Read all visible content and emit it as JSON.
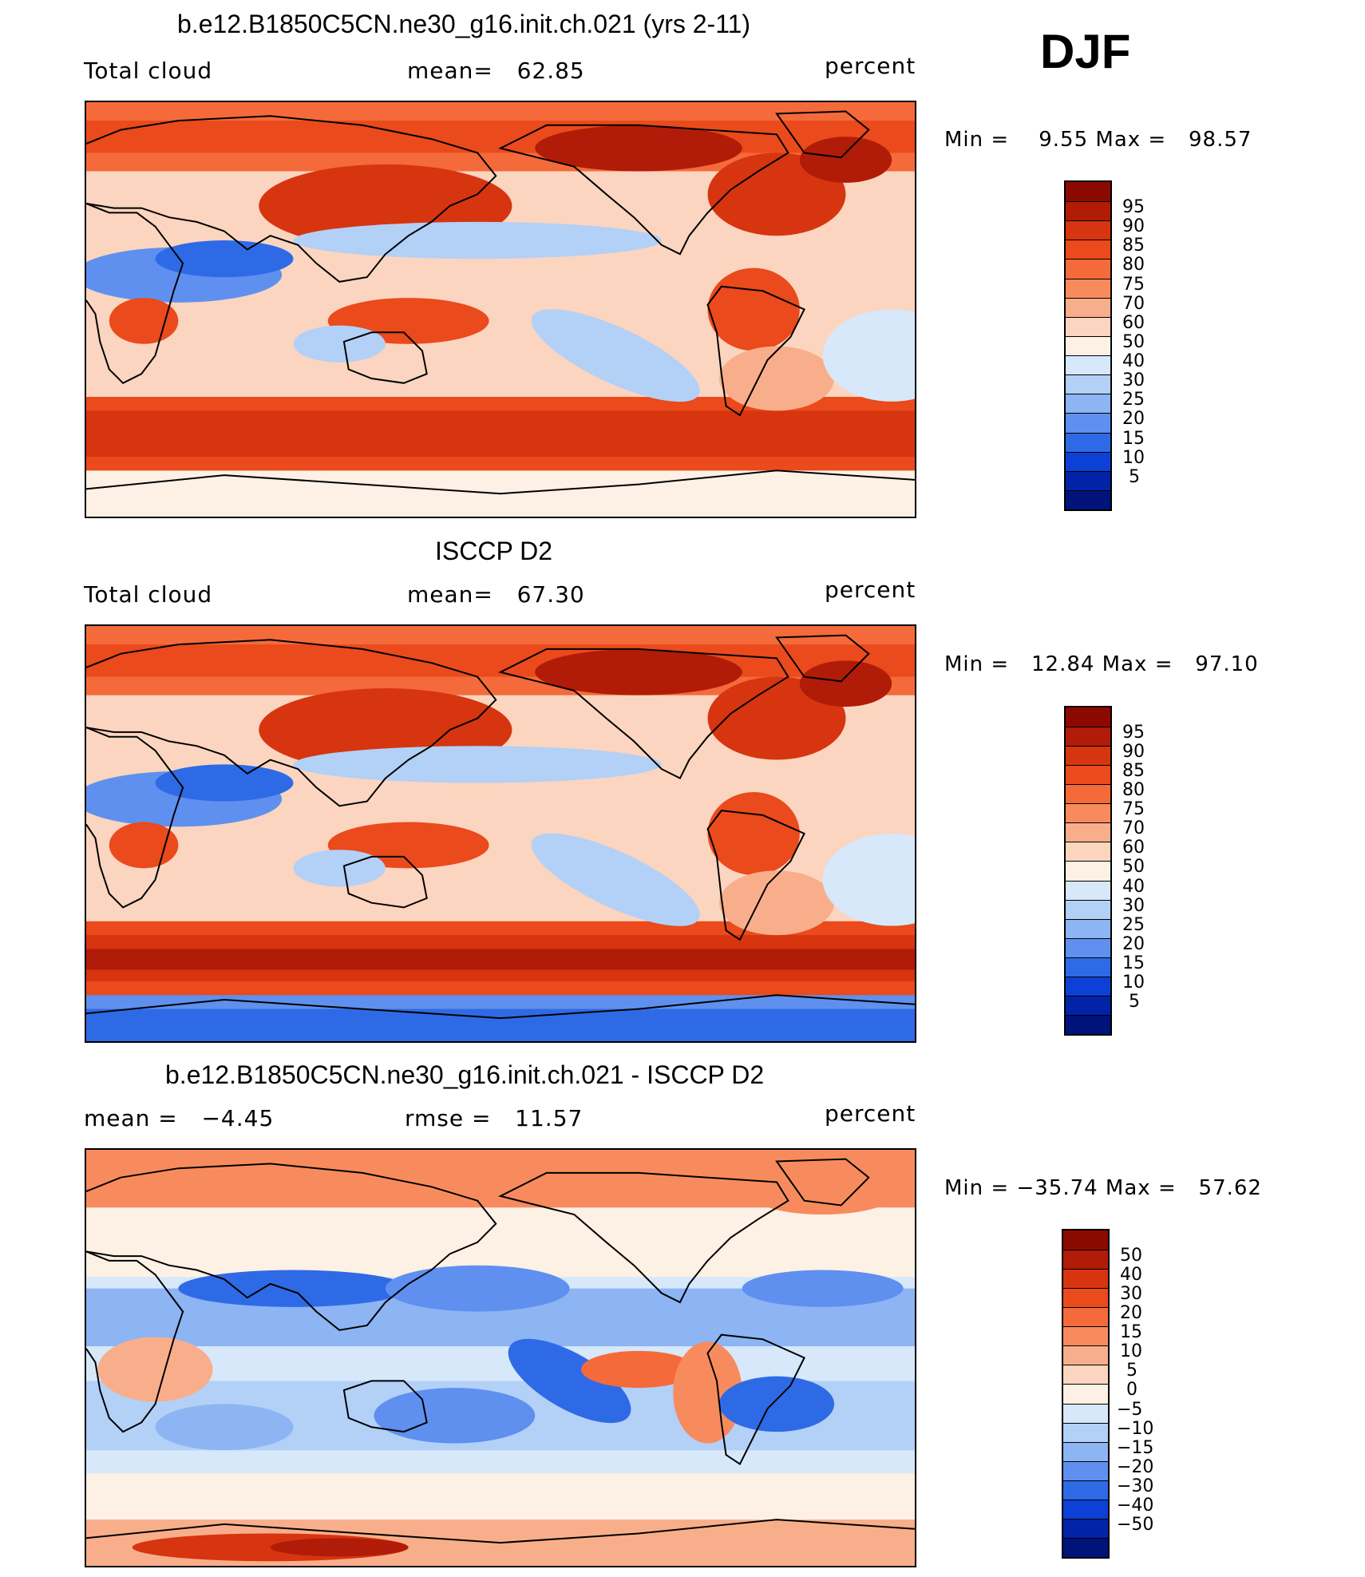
{
  "season": "DJF",
  "panels": [
    {
      "title": "b.e12.B1850C5CN.ne30_g16.init.ch.021 (yrs 2-11)",
      "left": "Total cloud",
      "center": "mean=   62.85",
      "right": "percent",
      "minmax": "Min =    9.55 Max =   98.57",
      "type": "abs"
    },
    {
      "title": "ISCCP D2",
      "left": "Total cloud",
      "center": "mean=   67.30",
      "right": "percent",
      "minmax": "Min =   12.84 Max =   97.10",
      "type": "abs2"
    },
    {
      "title": "b.e12.B1850C5CN.ne30_g16.init.ch.021 - ISCCP D2",
      "left": "mean =   −4.45",
      "center": "rmse =   11.57",
      "right": "percent",
      "minmax": "Min = −35.74 Max =   57.62",
      "type": "diff"
    }
  ],
  "colorbar_abs": {
    "labels": [
      "95",
      "90",
      "85",
      "80",
      "75",
      "70",
      "60",
      "50",
      "40",
      "30",
      "25",
      "20",
      "15",
      "10",
      "5"
    ],
    "colors": [
      "#8b0a00",
      "#b01c08",
      "#d63510",
      "#ea4a1c",
      "#f46a3a",
      "#f78b5e",
      "#f9ae8b",
      "#fbd5bf",
      "#fdf0e4",
      "#d6e8fa",
      "#b3d0f7",
      "#8db4f3",
      "#5f90ef",
      "#2f6ae6",
      "#0c40d6",
      "#0223a8",
      "#00137a"
    ]
  },
  "colorbar_diff": {
    "labels": [
      "50",
      "40",
      "30",
      "20",
      "15",
      "10",
      "5",
      "0",
      "−5",
      "−10",
      "−15",
      "−20",
      "−30",
      "−40",
      "−50"
    ],
    "colors": [
      "#8b0a00",
      "#b01c08",
      "#d63510",
      "#ea4a1c",
      "#f46a3a",
      "#f78b5e",
      "#f9ae8b",
      "#fbd5bf",
      "#fdf0e4",
      "#d6e8fa",
      "#b3d0f7",
      "#8db4f3",
      "#5f90ef",
      "#2f6ae6",
      "#0c40d6",
      "#0223a8",
      "#00137a"
    ]
  }
}
